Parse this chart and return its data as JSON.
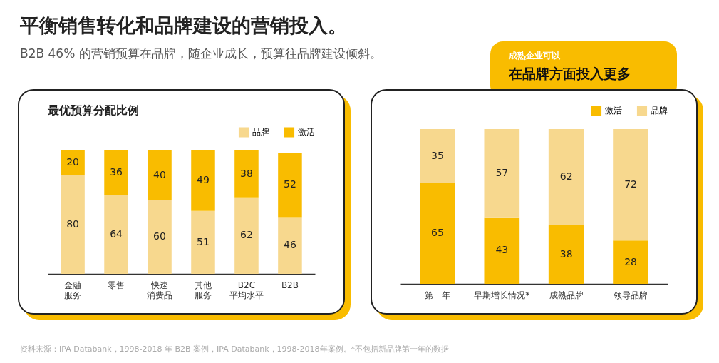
{
  "chart_data": [
    {
      "type": "other",
      "title": "平衡销售转化和品牌建设的营销投入。",
      "subtitle": "B2B 46% 的营销预算在品牌，随企业成长，预算往品牌建设倾斜。",
      "annotations": [
        "资料来源：IPA Databank，1998-2018 年 B2B 案例，IPA Databank，1998-2018年案例。*不包括新品牌第一年的数据"
      ]
    },
    {
      "type": "bar",
      "stacked": true,
      "title": "最优预算分配比例",
      "categories": [
        "金融服务",
        "零售",
        "快速消费品",
        "其他服务",
        "B2C平均水平",
        "B2B"
      ],
      "data_labels": true,
      "legend": "top right",
      "series": [
        {
          "name": "品牌",
          "color": "#f7d88e",
          "values": [
            80,
            64,
            60,
            51,
            62,
            46
          ]
        },
        {
          "name": "激活",
          "color": "#f9bc00",
          "values": [
            20,
            36,
            40,
            49,
            38,
            52
          ]
        }
      ]
    },
    {
      "type": "bar",
      "stacked": true,
      "categories": [
        "第一年",
        "早期增长情况*",
        "成熟品牌",
        "领导品牌"
      ],
      "data_labels": true,
      "legend": "top right",
      "annotations": [
        "成熟企业可以",
        "在品牌方面投入更多"
      ],
      "series": [
        {
          "name": "激活",
          "color": "#f9bc00",
          "values": [
            65,
            43,
            38,
            28
          ]
        },
        {
          "name": "品牌",
          "color": "#f7d88e",
          "values": [
            35,
            57,
            62,
            72
          ]
        }
      ]
    }
  ]
}
